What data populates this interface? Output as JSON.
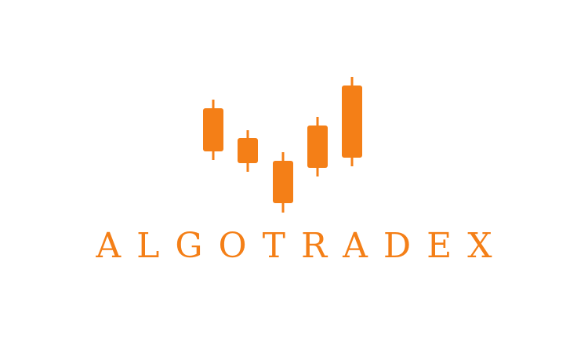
{
  "brand": {
    "name": "ALGOTRADEX",
    "accent_color": "#F47F17"
  },
  "logo": {
    "icon": "candlestick-chart-icon",
    "candle_count": 5
  }
}
